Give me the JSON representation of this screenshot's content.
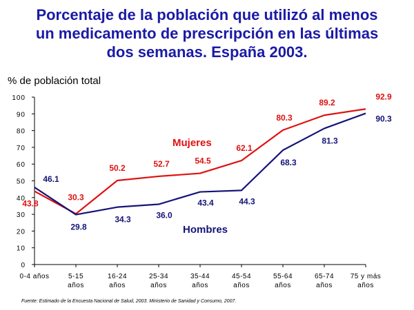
{
  "chart_data": {
    "type": "line",
    "title_lines": [
      "Porcentaje de la población que utilizó al menos",
      "un medicamento de prescripción en las últimas",
      "dos semanas. España 2003."
    ],
    "ylabel": "% de población total",
    "xlabel": "",
    "ylim": [
      0,
      100
    ],
    "yticks": [
      "0",
      "10",
      "20",
      "30",
      "40",
      "50",
      "60",
      "70",
      "80",
      "90",
      "100"
    ],
    "categories": [
      [
        "0-4 años"
      ],
      [
        "5-15",
        "años"
      ],
      [
        "16-24",
        "años"
      ],
      [
        "25-34",
        "años"
      ],
      [
        "35-44",
        "años"
      ],
      [
        "45-54",
        "años"
      ],
      [
        "55-64",
        "años"
      ],
      [
        "65-74",
        "años"
      ],
      [
        "75 y más",
        "años"
      ]
    ],
    "series": [
      {
        "name": "Mujeres",
        "color": "#e01010",
        "values": [
          43.8,
          30.3,
          50.2,
          52.7,
          54.5,
          62.1,
          80.3,
          89.2,
          92.9
        ],
        "value_labels": [
          "43.8",
          "30.3",
          "50.2",
          "52.7",
          "54.5",
          "62.1",
          "80.3",
          "89.2",
          "92.9"
        ]
      },
      {
        "name": "Hombres",
        "color": "#141478",
        "values": [
          46.1,
          29.8,
          34.3,
          36.0,
          43.4,
          44.3,
          68.3,
          81.3,
          90.3
        ],
        "value_labels": [
          "46.1",
          "29.8",
          "34.3",
          "36.0",
          "43.4",
          "44.3",
          "68.3",
          "81.3",
          "90.3"
        ]
      }
    ],
    "legend": "inline labels on lines",
    "grid": false
  },
  "source": "Fuente: Estimado de la Encuesta Nacional de Salud, 2003. Ministerio de Sanidad y Consumo, 2007."
}
